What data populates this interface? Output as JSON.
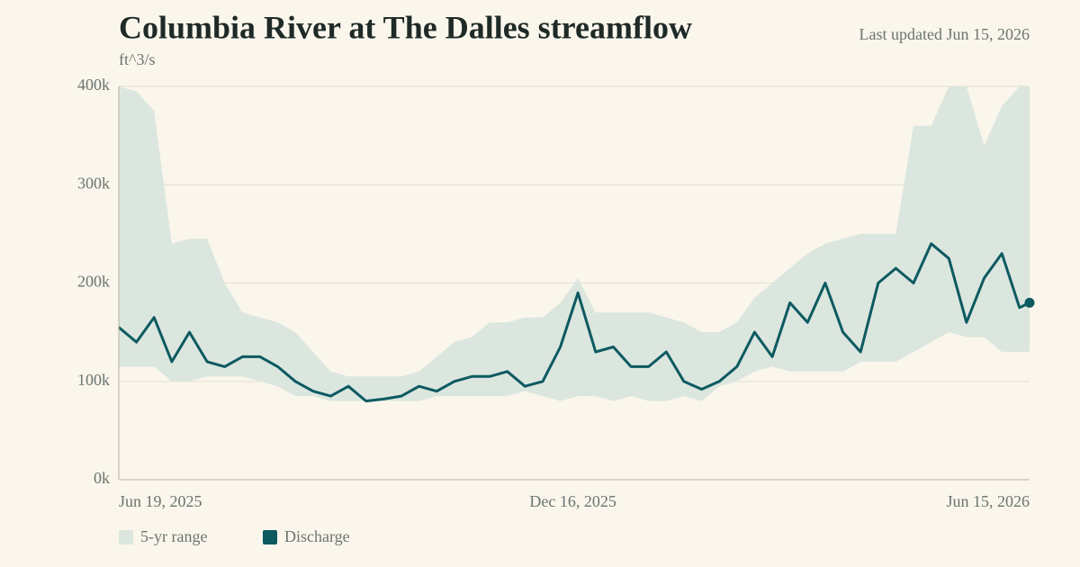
{
  "chart_data": {
    "type": "line",
    "title": "Columbia River at The Dalles streamflow",
    "note": "Last updated Jun 15, 2026",
    "y_label": "ft^3/s",
    "x": [
      "2025-06-19",
      "2025-06-26",
      "2025-07-03",
      "2025-07-10",
      "2025-07-17",
      "2025-07-24",
      "2025-07-31",
      "2025-08-07",
      "2025-08-14",
      "2025-08-21",
      "2025-08-28",
      "2025-09-04",
      "2025-09-11",
      "2025-09-18",
      "2025-09-25",
      "2025-10-02",
      "2025-10-09",
      "2025-10-16",
      "2025-10-23",
      "2025-10-30",
      "2025-11-06",
      "2025-11-13",
      "2025-11-20",
      "2025-11-27",
      "2025-12-04",
      "2025-12-11",
      "2025-12-18",
      "2025-12-25",
      "2026-01-01",
      "2026-01-08",
      "2026-01-15",
      "2026-01-22",
      "2026-01-29",
      "2026-02-05",
      "2026-02-12",
      "2026-02-19",
      "2026-02-26",
      "2026-03-05",
      "2026-03-12",
      "2026-03-19",
      "2026-03-26",
      "2026-04-02",
      "2026-04-09",
      "2026-04-16",
      "2026-04-23",
      "2026-04-30",
      "2026-05-07",
      "2026-05-14",
      "2026-05-21",
      "2026-05-28",
      "2026-06-04",
      "2026-06-11",
      "2026-06-15"
    ],
    "xlim": [
      "2025-06-19",
      "2026-06-15"
    ],
    "xticks": [
      {
        "value": "2025-06-19",
        "label": "Jun 19, 2025"
      },
      {
        "value": "2025-12-16",
        "label": "Dec 16, 2025"
      },
      {
        "value": "2026-06-15",
        "label": "Jun 15, 2026"
      }
    ],
    "ylim": [
      0,
      400000
    ],
    "yticks": [
      {
        "value": 0,
        "label": "0k"
      },
      {
        "value": 100000,
        "label": "100k"
      },
      {
        "value": 200000,
        "label": "200k"
      },
      {
        "value": 300000,
        "label": "300k"
      },
      {
        "value": 400000,
        "label": "400k"
      }
    ],
    "grid": true,
    "range": {
      "name": "5-yr range",
      "color": "#dbe6df",
      "low": [
        115000,
        115000,
        115000,
        100000,
        100000,
        105000,
        105000,
        105000,
        100000,
        95000,
        85000,
        85000,
        80000,
        80000,
        80000,
        80000,
        80000,
        80000,
        85000,
        85000,
        85000,
        85000,
        85000,
        90000,
        85000,
        80000,
        85000,
        85000,
        80000,
        85000,
        80000,
        80000,
        85000,
        80000,
        95000,
        100000,
        110000,
        115000,
        110000,
        110000,
        110000,
        110000,
        120000,
        120000,
        120000,
        130000,
        140000,
        150000,
        145000,
        145000,
        130000,
        130000,
        130000
      ],
      "high": [
        400000,
        395000,
        375000,
        240000,
        245000,
        245000,
        200000,
        170000,
        165000,
        160000,
        150000,
        130000,
        110000,
        105000,
        105000,
        105000,
        105000,
        110000,
        125000,
        140000,
        145000,
        160000,
        160000,
        165000,
        165000,
        180000,
        205000,
        170000,
        170000,
        170000,
        170000,
        165000,
        160000,
        150000,
        150000,
        160000,
        185000,
        200000,
        215000,
        230000,
        240000,
        245000,
        250000,
        250000,
        250000,
        360000,
        360000,
        400000,
        400000,
        340000,
        380000,
        400000,
        400000
      ]
    },
    "series": [
      {
        "name": "Discharge",
        "color": "#0d5a61",
        "values": [
          155000,
          140000,
          165000,
          120000,
          150000,
          120000,
          115000,
          125000,
          125000,
          115000,
          100000,
          90000,
          85000,
          95000,
          80000,
          82000,
          85000,
          95000,
          90000,
          100000,
          105000,
          105000,
          110000,
          95000,
          100000,
          135000,
          190000,
          130000,
          135000,
          115000,
          115000,
          130000,
          100000,
          92000,
          100000,
          115000,
          150000,
          125000,
          180000,
          160000,
          200000,
          150000,
          130000,
          200000,
          215000,
          200000,
          240000,
          225000,
          160000,
          205000,
          230000,
          175000,
          180000
        ]
      }
    ]
  }
}
